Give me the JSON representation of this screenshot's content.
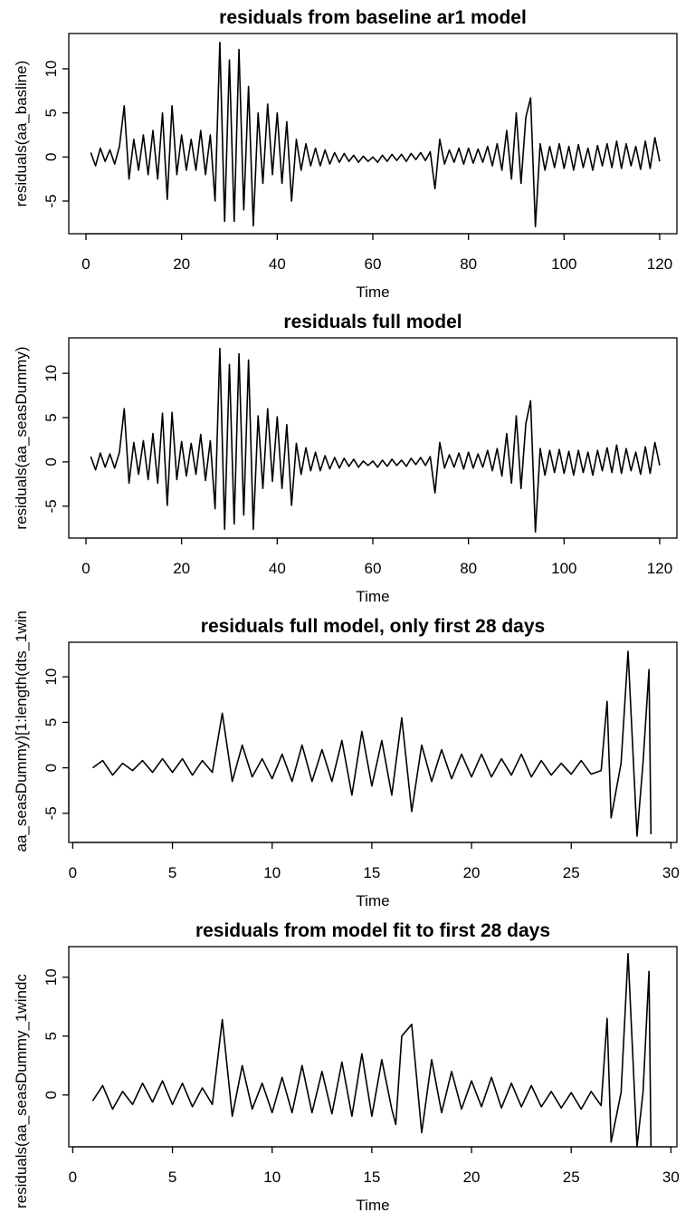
{
  "chart_data": [
    {
      "type": "line",
      "title": "residuals from baseline ar1 model",
      "x_label": "Time",
      "y_label": "residuals(aa_basline)",
      "color": "#000000",
      "x": [
        1,
        2,
        3,
        4,
        5,
        6,
        7,
        8,
        9,
        10,
        11,
        12,
        13,
        14,
        15,
        16,
        17,
        18,
        19,
        20,
        21,
        22,
        23,
        24,
        25,
        26,
        27,
        28,
        29,
        30,
        31,
        32,
        33,
        34,
        35,
        36,
        37,
        38,
        39,
        40,
        41,
        42,
        43,
        44,
        45,
        46,
        47,
        48,
        49,
        50,
        51,
        52,
        53,
        54,
        55,
        56,
        57,
        58,
        59,
        60,
        61,
        62,
        63,
        64,
        65,
        66,
        67,
        68,
        69,
        70,
        71,
        72,
        73,
        74,
        75,
        76,
        77,
        78,
        79,
        80,
        81,
        82,
        83,
        84,
        85,
        86,
        87,
        88,
        89,
        90,
        91,
        92,
        93,
        94,
        95,
        96,
        97,
        98,
        99,
        100,
        101,
        102,
        103,
        104,
        105,
        106,
        107,
        108,
        109,
        110,
        111,
        112,
        113,
        114,
        115,
        116,
        117,
        118,
        119,
        120
      ],
      "values": [
        0.5,
        -1,
        1,
        -0.5,
        0.8,
        -0.8,
        1.2,
        5.8,
        -2.5,
        2,
        -1.5,
        2.5,
        -2,
        3,
        -2.5,
        5,
        -4.8,
        5.8,
        -2,
        2.5,
        -1.5,
        2,
        -1.5,
        3,
        -2,
        2.5,
        -5,
        13,
        -7.3,
        11,
        -7.3,
        12.2,
        -6,
        8,
        -7.8,
        5,
        -3,
        6,
        -2,
        5,
        -3,
        4,
        -5,
        2,
        -1.5,
        1.5,
        -1,
        1,
        -1,
        0.8,
        -0.8,
        0.5,
        -0.6,
        0.4,
        -0.5,
        0.2,
        -0.6,
        0.1,
        -0.5,
        0,
        -0.6,
        0.2,
        -0.5,
        0.3,
        -0.4,
        0.3,
        -0.5,
        0.4,
        -0.3,
        0.5,
        -0.4,
        0.6,
        -3.6,
        2,
        -0.8,
        0.8,
        -0.6,
        1,
        -0.8,
        1,
        -0.7,
        0.9,
        -0.6,
        1.2,
        -1,
        1.5,
        -1.5,
        3,
        -2.5,
        5,
        -3,
        4.5,
        6.7,
        -7.9,
        1.5,
        -1.5,
        1.2,
        -1.2,
        1.5,
        -1.3,
        1.2,
        -1.5,
        1.4,
        -1.2,
        1,
        -1.5,
        1.3,
        -1,
        1.5,
        -1.2,
        1.8,
        -1.3,
        1.5,
        -1,
        1.2,
        -1.4,
        1.8,
        -1.3,
        2.2,
        -0.5
      ],
      "xlim": [
        -3.6,
        123.6
      ],
      "ylim": [
        -8.7,
        14
      ],
      "xticks": [
        0,
        20,
        40,
        60,
        80,
        100,
        120
      ],
      "yticks": [
        -5,
        0,
        5,
        10
      ]
    },
    {
      "type": "line",
      "title": "residuals full model",
      "x_label": "Time",
      "y_label": "residuals(aa_seasDummy)",
      "color": "#000000",
      "x": [
        1,
        2,
        3,
        4,
        5,
        6,
        7,
        8,
        9,
        10,
        11,
        12,
        13,
        14,
        15,
        16,
        17,
        18,
        19,
        20,
        21,
        22,
        23,
        24,
        25,
        26,
        27,
        28,
        29,
        30,
        31,
        32,
        33,
        34,
        35,
        36,
        37,
        38,
        39,
        40,
        41,
        42,
        43,
        44,
        45,
        46,
        47,
        48,
        49,
        50,
        51,
        52,
        53,
        54,
        55,
        56,
        57,
        58,
        59,
        60,
        61,
        62,
        63,
        64,
        65,
        66,
        67,
        68,
        69,
        70,
        71,
        72,
        73,
        74,
        75,
        76,
        77,
        78,
        79,
        80,
        81,
        82,
        83,
        84,
        85,
        86,
        87,
        88,
        89,
        90,
        91,
        92,
        93,
        94,
        95,
        96,
        97,
        98,
        99,
        100,
        101,
        102,
        103,
        104,
        105,
        106,
        107,
        108,
        109,
        110,
        111,
        112,
        113,
        114,
        115,
        116,
        117,
        118,
        119,
        120
      ],
      "values": [
        0.6,
        -0.9,
        1,
        -0.6,
        0.9,
        -0.7,
        1.1,
        6,
        -2.4,
        2.2,
        -1.4,
        2.4,
        -2,
        3.2,
        -2.4,
        5.5,
        -4.9,
        5.6,
        -2,
        2.3,
        -1.6,
        2.1,
        -1.4,
        3.1,
        -2.1,
        2.4,
        -5.3,
        12.8,
        -7.6,
        11,
        -7,
        12.2,
        -6,
        11.5,
        -7.6,
        5.2,
        -3,
        6,
        -2.2,
        5.1,
        -3,
        4.2,
        -4.9,
        2.1,
        -1.4,
        1.6,
        -1,
        1.1,
        -1,
        0.7,
        -0.8,
        0.5,
        -0.7,
        0.4,
        -0.5,
        0.3,
        -0.6,
        0.1,
        -0.4,
        0.1,
        -0.6,
        0.2,
        -0.5,
        0.3,
        -0.4,
        0.2,
        -0.5,
        0.4,
        -0.3,
        0.5,
        -0.4,
        0.6,
        -3.5,
        2.2,
        -0.7,
        0.8,
        -0.6,
        1,
        -0.8,
        1.1,
        -0.7,
        0.9,
        -0.6,
        1.3,
        -1,
        1.5,
        -1.6,
        3.2,
        -2.4,
        5.2,
        -3,
        4.3,
        6.9,
        -7.9,
        1.5,
        -1.5,
        1.3,
        -1.2,
        1.4,
        -1.3,
        1.2,
        -1.5,
        1.3,
        -1.2,
        1.1,
        -1.5,
        1.3,
        -1,
        1.6,
        -1.2,
        1.9,
        -1.3,
        1.5,
        -1,
        1.1,
        -1.4,
        1.7,
        -1.3,
        2.2,
        -0.4
      ],
      "xlim": [
        -3.6,
        123.6
      ],
      "ylim": [
        -8.6,
        14
      ],
      "xticks": [
        0,
        20,
        40,
        60,
        80,
        100,
        120
      ],
      "yticks": [
        -5,
        0,
        5,
        10
      ]
    },
    {
      "type": "line",
      "title": "residuals full model, only first 28 days",
      "x_label": "Time",
      "y_label": "aa_seasDummy)[1:length(dts_1win",
      "color": "#000000",
      "x": [
        1,
        1.5,
        2,
        2.5,
        3,
        3.5,
        4,
        4.5,
        5,
        5.5,
        6,
        6.5,
        7,
        7.5,
        8,
        8.5,
        9,
        9.5,
        10,
        10.5,
        11,
        11.5,
        12,
        12.5,
        13,
        13.5,
        14,
        14.5,
        15,
        15.5,
        16,
        16.5,
        17,
        17.5,
        18,
        18.5,
        19,
        19.5,
        20,
        20.5,
        21,
        21.5,
        22,
        22.5,
        23,
        23.5,
        24,
        24.5,
        25,
        25.5,
        26,
        26.5,
        26.8,
        27,
        27.5,
        27.85,
        28.3,
        28.6,
        28.9,
        29
      ],
      "values": [
        0,
        0.8,
        -0.8,
        0.5,
        -0.3,
        0.8,
        -0.5,
        1,
        -0.5,
        1,
        -0.8,
        0.8,
        -0.5,
        6,
        -1.5,
        2.5,
        -1,
        1,
        -1.2,
        1.5,
        -1.5,
        2.5,
        -1.5,
        2,
        -1.5,
        3,
        -3,
        4,
        -2,
        3,
        -3,
        5.5,
        -4.8,
        2.5,
        -1.5,
        2,
        -1.2,
        1.5,
        -1,
        1.5,
        -1,
        1,
        -0.8,
        1.5,
        -1,
        0.8,
        -0.8,
        0.5,
        -0.7,
        0.8,
        -0.7,
        -0.3,
        7.3,
        -5.5,
        0.5,
        12.8,
        -7.5,
        0.5,
        10.8,
        -7.3
      ],
      "xlim": [
        -0.2,
        30.3
      ],
      "ylim": [
        -8.2,
        13.8
      ],
      "xticks": [
        0,
        5,
        10,
        15,
        20,
        25,
        30
      ],
      "yticks": [
        -5,
        0,
        5,
        10
      ]
    },
    {
      "type": "line",
      "title": "residuals from model fit to first 28 days",
      "x_label": "Time",
      "y_label": "residuals(aa_seasDummy_1windc",
      "color": "#000000",
      "x": [
        1,
        1.5,
        2,
        2.5,
        3,
        3.5,
        4,
        4.5,
        5,
        5.5,
        6,
        6.5,
        7,
        7.5,
        8,
        8.5,
        9,
        9.5,
        10,
        10.5,
        11,
        11.5,
        12,
        12.5,
        13,
        13.5,
        14,
        14.5,
        15,
        15.5,
        16,
        16.2,
        16.5,
        17,
        17.5,
        18,
        18.5,
        19,
        19.5,
        20,
        20.5,
        21,
        21.5,
        22,
        22.5,
        23,
        23.5,
        24,
        24.5,
        25,
        25.5,
        26,
        26.5,
        26.8,
        27,
        27.5,
        27.85,
        28.3,
        28.6,
        28.9,
        29
      ],
      "values": [
        -0.5,
        0.8,
        -1.2,
        0.3,
        -0.8,
        1,
        -0.6,
        1.2,
        -0.8,
        1,
        -1,
        0.6,
        -0.8,
        6.4,
        -1.8,
        2.5,
        -1.2,
        1,
        -1.5,
        1.5,
        -1.5,
        2.5,
        -1.5,
        2,
        -1.6,
        2.8,
        -1.8,
        3.5,
        -1.8,
        3,
        -1.2,
        -2.5,
        5,
        6,
        -3.2,
        3,
        -1.5,
        2,
        -1.2,
        1.2,
        -1,
        1.5,
        -1.1,
        1,
        -1,
        0.8,
        -1,
        0.3,
        -1.1,
        0.2,
        -1.2,
        0.3,
        -0.9,
        6.5,
        -4,
        0.2,
        12,
        -4.4,
        0.2,
        10.5,
        -4.4
      ],
      "xlim": [
        -0.2,
        30.3
      ],
      "ylim": [
        -4.4,
        12.6
      ],
      "xticks": [
        0,
        5,
        10,
        15,
        20,
        25,
        30
      ],
      "yticks": [
        0,
        5,
        10
      ]
    }
  ]
}
